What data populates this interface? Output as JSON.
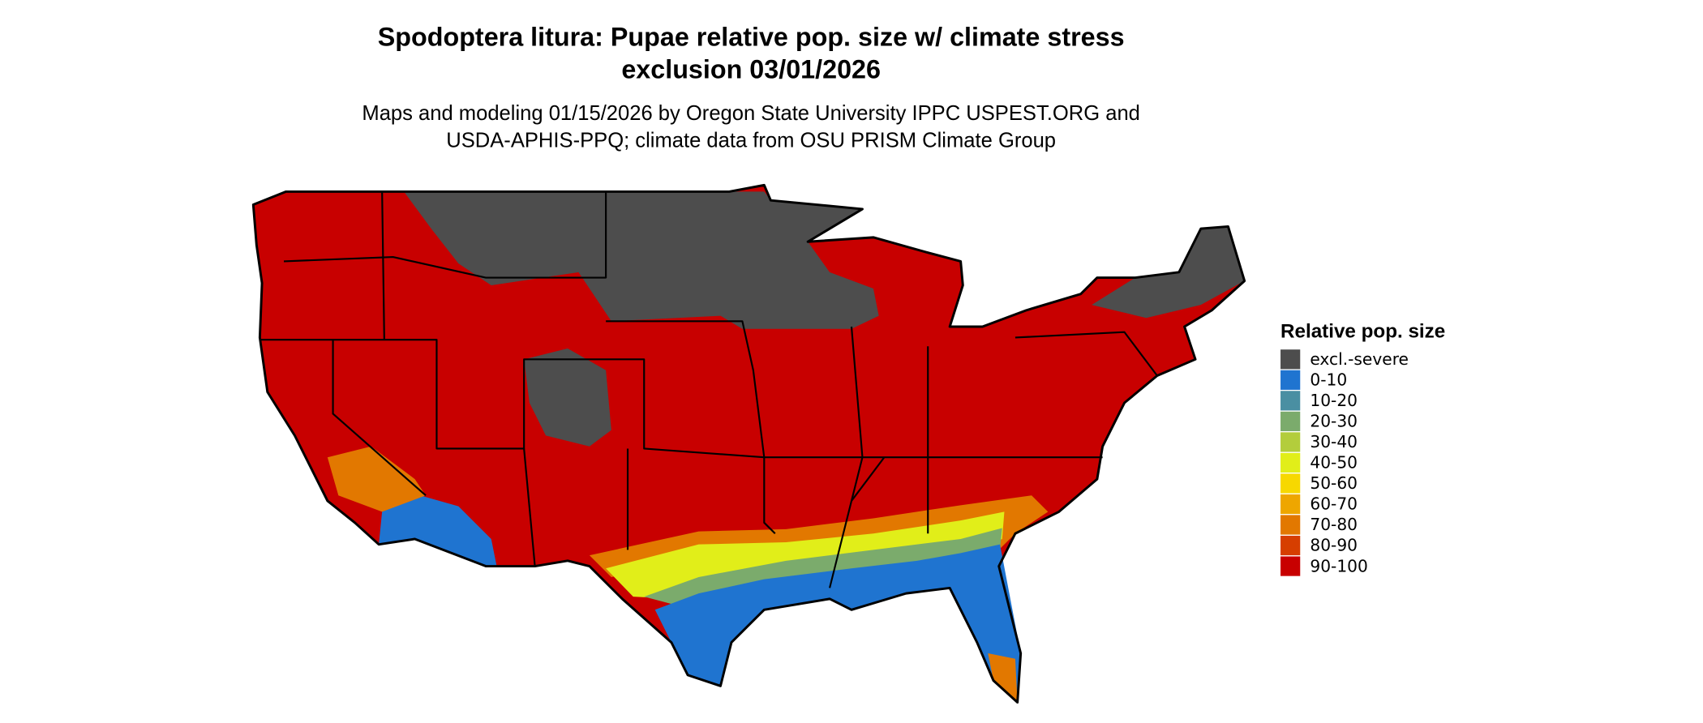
{
  "title": [
    "Spodoptera litura: Pupae relative pop. size w/ climate stress",
    "exclusion 03/01/2026"
  ],
  "subtitle": [
    "Maps and modeling 01/15/2026 by Oregon State University IPPC USPEST.ORG and",
    "USDA-APHIS-PPQ; climate data from OSU PRISM Climate Group"
  ],
  "legend": {
    "title": "Relative pop. size",
    "items": [
      {
        "label": "excl.-severe",
        "color": "#4d4d4d"
      },
      {
        "label": "0-10",
        "color": "#1f74d0"
      },
      {
        "label": "10-20",
        "color": "#4a8fa2"
      },
      {
        "label": "20-30",
        "color": "#7bab6c"
      },
      {
        "label": "30-40",
        "color": "#b3cd3c"
      },
      {
        "label": "40-50",
        "color": "#e1ee19"
      },
      {
        "label": "50-60",
        "color": "#f7d800"
      },
      {
        "label": "60-70",
        "color": "#eea600"
      },
      {
        "label": "70-80",
        "color": "#e27800"
      },
      {
        "label": "80-90",
        "color": "#d63e00"
      },
      {
        "label": "90-100",
        "color": "#c80000"
      }
    ]
  }
}
